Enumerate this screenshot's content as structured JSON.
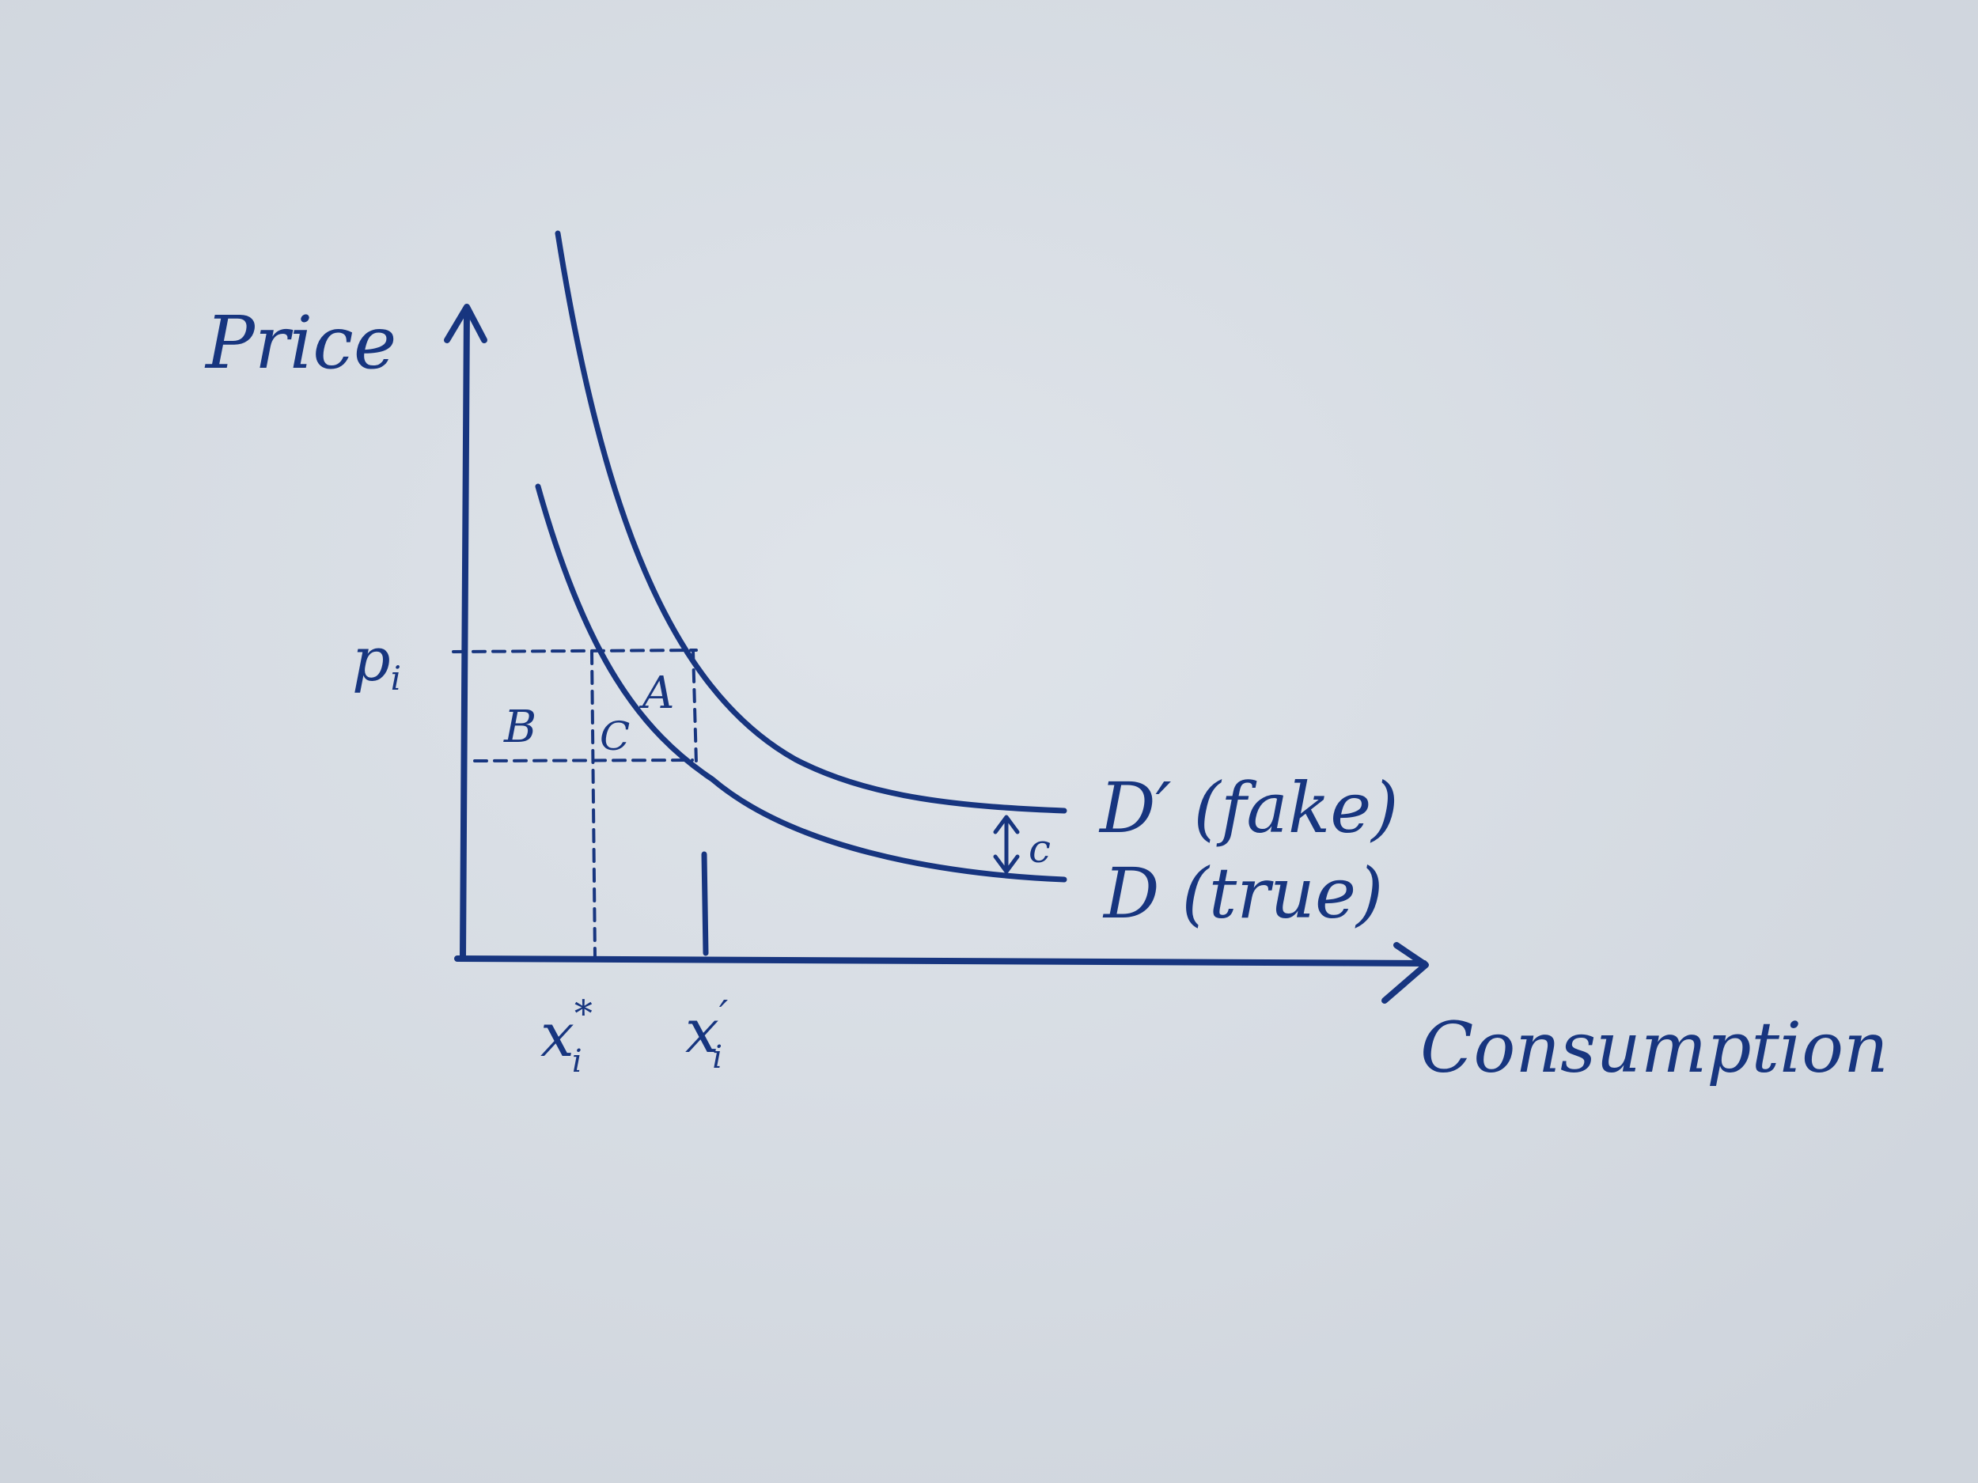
{
  "labels": {
    "y_axis": "Price",
    "x_axis": "Consumption",
    "price_tick": "p",
    "price_tick_sub": "i",
    "x_star": "x",
    "x_star_sup": "*",
    "x_star_sub": "i",
    "x_prime": "x",
    "x_prime_sup": "′",
    "x_prime_sub": "i",
    "region_a": "A",
    "region_b": "B",
    "region_c": "C",
    "gap_c": "c",
    "curve_fake": "D′ (fake)",
    "curve_true": "D (true)"
  },
  "colors": {
    "ink": "#17357f",
    "paper": "#d9dee4"
  }
}
